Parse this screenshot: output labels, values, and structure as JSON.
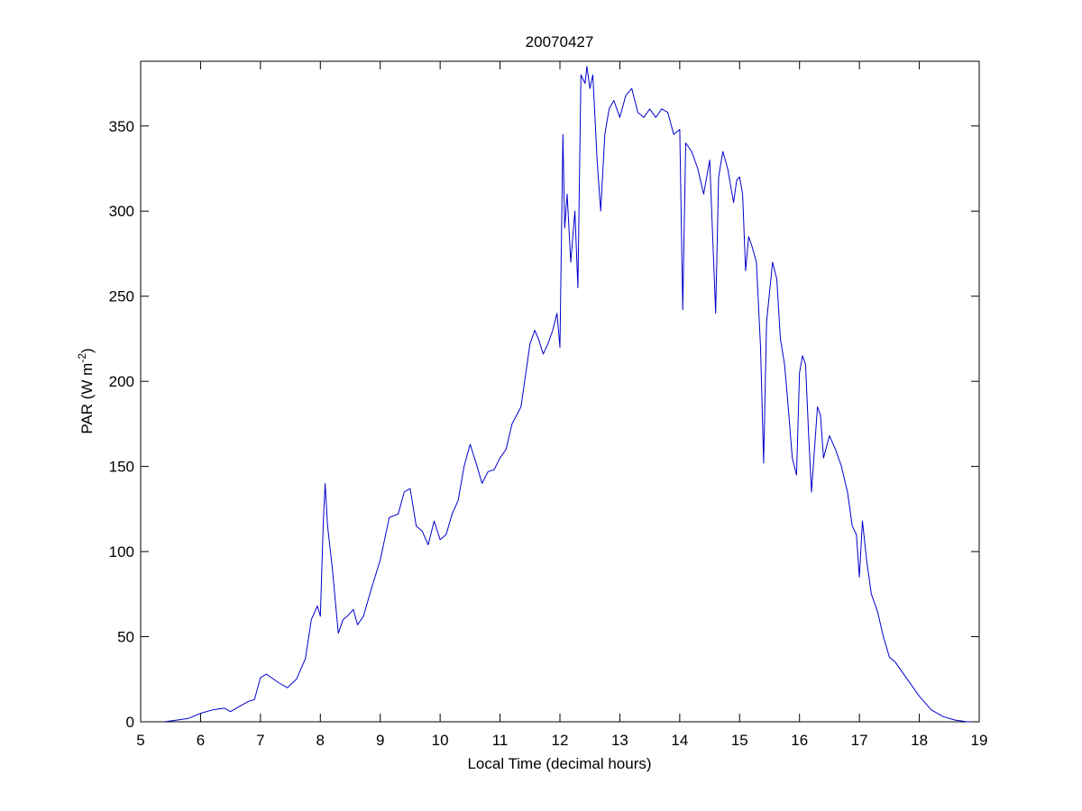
{
  "chart_data": {
    "type": "line",
    "title": "20070427",
    "xlabel": "Local Time (decimal hours)",
    "ylabel": "PAR (W m^-2)",
    "ylabel_parts": {
      "main": "PAR (W m",
      "sup": "-2",
      "close": ")"
    },
    "xlim": [
      5,
      19
    ],
    "ylim": [
      0,
      388
    ],
    "xticks": [
      5,
      6,
      7,
      8,
      9,
      10,
      11,
      12,
      13,
      14,
      15,
      16,
      17,
      18,
      19
    ],
    "yticks": [
      0,
      50,
      100,
      150,
      200,
      250,
      300,
      350
    ],
    "grid": false,
    "line_color": "#0000cc",
    "series": [
      {
        "x": [
          5.4,
          5.6,
          5.8,
          6.0,
          6.2,
          6.4,
          6.5,
          6.7,
          6.8,
          6.9,
          7.0,
          7.1,
          7.3,
          7.45,
          7.6,
          7.75,
          7.85,
          7.95,
          8.0,
          8.05,
          8.08,
          8.12,
          8.2,
          8.3,
          8.38,
          8.45,
          8.55,
          8.62,
          8.72,
          8.85,
          9.0,
          9.15,
          9.3,
          9.4,
          9.5,
          9.6,
          9.7,
          9.8,
          9.9,
          10.0,
          10.1,
          10.2,
          10.3,
          10.4,
          10.5,
          10.6,
          10.7,
          10.8,
          10.9,
          11.0,
          11.1,
          11.2,
          11.35,
          11.5,
          11.58,
          11.65,
          11.72,
          11.8,
          11.88,
          11.95,
          12.0,
          12.05,
          12.08,
          12.12,
          12.18,
          12.25,
          12.3,
          12.35,
          12.42,
          12.45,
          12.5,
          12.55,
          12.62,
          12.68,
          12.75,
          12.82,
          12.9,
          13.0,
          13.1,
          13.2,
          13.3,
          13.4,
          13.5,
          13.6,
          13.7,
          13.8,
          13.9,
          14.0,
          14.05,
          14.1,
          14.2,
          14.3,
          14.4,
          14.5,
          14.6,
          14.65,
          14.72,
          14.8,
          14.9,
          14.95,
          15.0,
          15.05,
          15.1,
          15.15,
          15.2,
          15.28,
          15.35,
          15.4,
          15.45,
          15.55,
          15.62,
          15.68,
          15.75,
          15.8,
          15.88,
          15.95,
          16.0,
          16.05,
          16.1,
          16.15,
          16.2,
          16.3,
          16.35,
          16.4,
          16.5,
          16.6,
          16.7,
          16.8,
          16.88,
          16.95,
          17.0,
          17.05,
          17.12,
          17.2,
          17.3,
          17.4,
          17.5,
          17.6,
          17.8,
          18.0,
          18.2,
          18.4,
          18.6,
          18.8,
          19.0
        ],
        "y": [
          0,
          1,
          2,
          5,
          7,
          8,
          6,
          10,
          12,
          13,
          26,
          28,
          23,
          20,
          25,
          37,
          60,
          68,
          62,
          118,
          140,
          115,
          90,
          52,
          60,
          62,
          66,
          57,
          62,
          78,
          95,
          120,
          122,
          135,
          137,
          115,
          112,
          104,
          118,
          107,
          110,
          122,
          130,
          150,
          163,
          152,
          140,
          147,
          148,
          155,
          160,
          175,
          185,
          222,
          230,
          224,
          216,
          222,
          230,
          240,
          220,
          345,
          290,
          310,
          270,
          300,
          255,
          380,
          375,
          385,
          372,
          380,
          330,
          300,
          345,
          360,
          365,
          355,
          368,
          372,
          358,
          355,
          360,
          355,
          360,
          358,
          345,
          348,
          242,
          340,
          335,
          325,
          310,
          330,
          240,
          320,
          335,
          325,
          305,
          318,
          320,
          310,
          265,
          285,
          280,
          270,
          220,
          152,
          235,
          270,
          260,
          225,
          210,
          190,
          155,
          145,
          205,
          215,
          210,
          170,
          135,
          185,
          180,
          155,
          168,
          160,
          150,
          135,
          115,
          110,
          85,
          118,
          95,
          75,
          65,
          50,
          38,
          35,
          25,
          15,
          7,
          3,
          1,
          0,
          0
        ]
      }
    ]
  }
}
